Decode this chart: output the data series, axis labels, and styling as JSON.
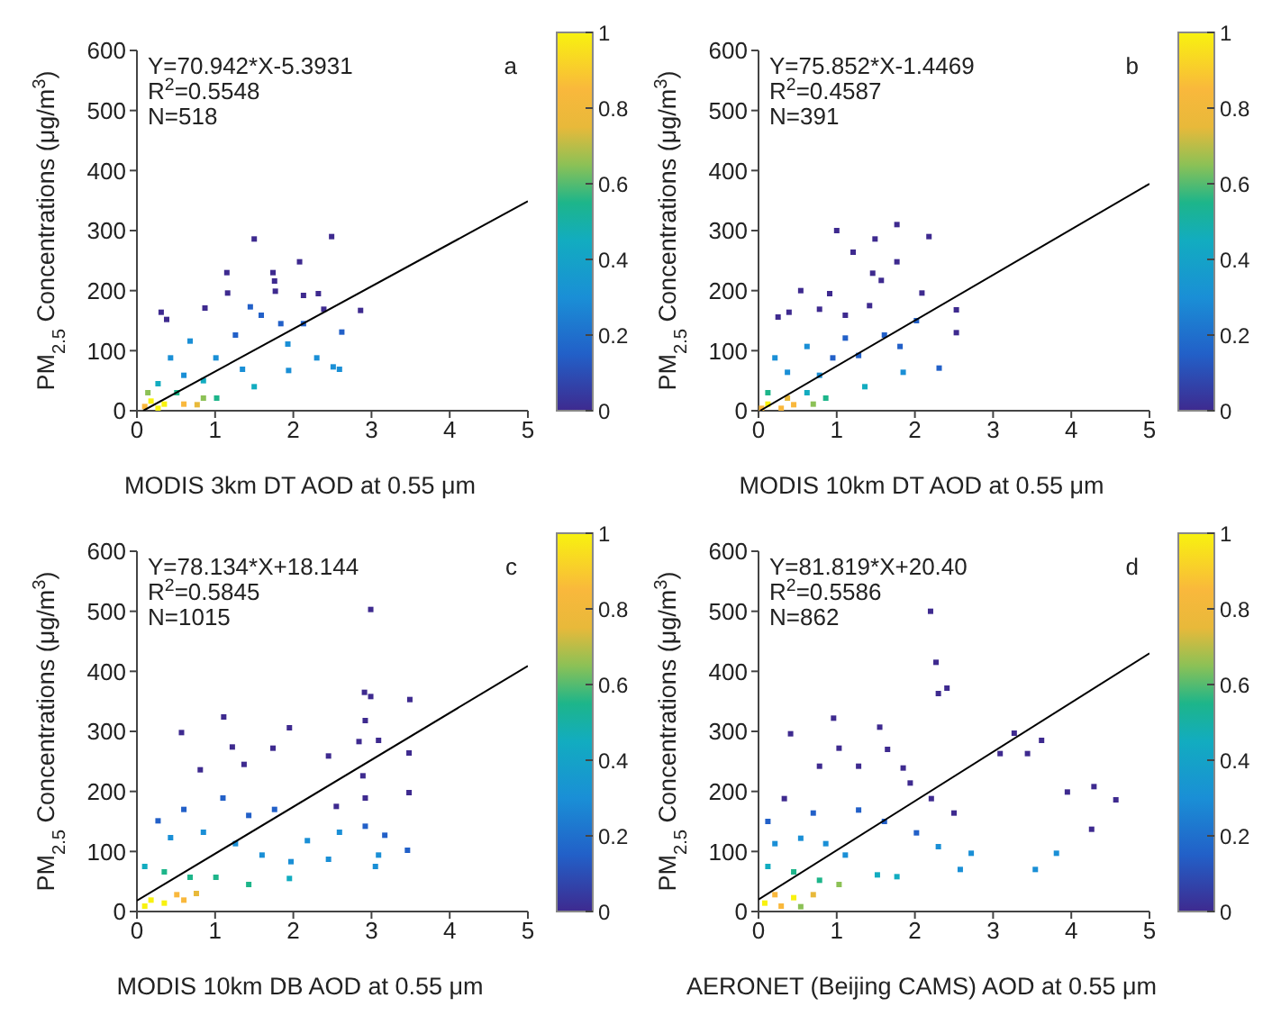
{
  "chart_data": [
    {
      "type": "scatter",
      "xlabel": "MODIS 3km DT AOD at 0.55 μm",
      "ylabel": "PM$_{2.5}$ Concentrations (μg/m$^{3}$)",
      "xlim": [
        0,
        5
      ],
      "xticks": [
        0,
        1,
        2,
        3,
        4,
        5
      ],
      "ylim": [
        0,
        600
      ],
      "yticks": [
        0,
        100,
        200,
        300,
        400,
        500,
        600
      ],
      "clim": [
        0,
        1
      ],
      "cticks": [
        0,
        0.2,
        0.4,
        0.6,
        0.8,
        1
      ],
      "annotations": [
        "Y=70.942*X-5.3931",
        "R$^{2}$=0.5548",
        "N=518",
        "a"
      ],
      "series": [
        {
          "type": "scatter",
          "marker": "square",
          "x": [
            1.5,
            2.49,
            1.15,
            1.74,
            2.08,
            1.76,
            1.16,
            1.77,
            2.13,
            2.32,
            0.87,
            0.31,
            0.38,
            2.86,
            2.39,
            2.62,
            1.45,
            1.26,
            1.59,
            1.84,
            2.13,
            1.93,
            2.3,
            2.51,
            2.59,
            1.94,
            1.5,
            0.68,
            0.43,
            1.01,
            1.35,
            0.6,
            0.85,
            0.27,
            0.14,
            0.51,
            0.85,
            1.02,
            0.18,
            0.35,
            0.6,
            0.1,
            0.27,
            0.77
          ],
          "values": [
            286,
            290,
            230,
            230,
            248,
            216,
            196,
            199,
            192,
            195,
            171,
            164,
            152,
            167,
            169,
            131,
            173,
            126,
            159,
            145,
            145,
            111,
            88,
            73,
            69,
            67,
            40,
            116,
            88,
            88,
            69,
            59,
            50,
            45,
            30,
            30,
            21,
            21,
            16,
            11,
            11,
            7,
            4,
            10
          ],
          "colors": [
            "#3e2a8f",
            "#3e2a8f",
            "#3e2a8f",
            "#3e2a8f",
            "#3e2a8f",
            "#3e2a8f",
            "#3e2a8f",
            "#3e2a8f",
            "#3e2a8f",
            "#3e2a8f",
            "#3e2a8f",
            "#3e2a8f",
            "#3e2a8f",
            "#3e2a8f",
            "#3e2a8f",
            "#2260c8",
            "#2260c8",
            "#2260c8",
            "#2260c8",
            "#2260c8",
            "#2260c8",
            "#1a8fd6",
            "#1a8fd6",
            "#1a8fd6",
            "#1a8fd6",
            "#1a8fd6",
            "#12acc0",
            "#1a8fd6",
            "#1a8fd6",
            "#1a8fd6",
            "#1a8fd6",
            "#1a8fd6",
            "#12acc0",
            "#12acc0",
            "#8cc156",
            "#1db58a",
            "#8cc156",
            "#1db58a",
            "#f8f20f",
            "#f8f20f",
            "#f9b83c",
            "#f9b83c",
            "#f8f20f",
            "#e8b93a"
          ]
        },
        {
          "type": "line",
          "marker": "none",
          "color": "#000000",
          "x": [
            0.08,
            5
          ],
          "values": [
            0,
            349
          ]
        }
      ]
    },
    {
      "type": "scatter",
      "xlabel": "MODIS 10km DT AOD at 0.55 μm",
      "ylabel": "PM$_{2.5}$ Concentrations (μg/m$^{3}$)",
      "xlim": [
        0,
        5
      ],
      "xticks": [
        0,
        1,
        2,
        3,
        4,
        5
      ],
      "ylim": [
        0,
        600
      ],
      "yticks": [
        0,
        100,
        200,
        300,
        400,
        500,
        600
      ],
      "clim": [
        0,
        1
      ],
      "cticks": [
        0,
        0.2,
        0.4,
        0.6,
        0.8,
        1
      ],
      "annotations": [
        "Y=75.852*X-1.4469",
        "R$^{2}$=0.4587",
        "N=391",
        "b"
      ],
      "series": [
        {
          "type": "scatter",
          "marker": "square",
          "x": [
            1.0,
            1.77,
            2.18,
            1.21,
            1.49,
            1.77,
            1.46,
            1.57,
            2.09,
            0.54,
            0.91,
            0.25,
            0.39,
            2.53,
            2.53,
            2.31,
            0.78,
            1.11,
            1.42,
            2.02,
            1.61,
            1.81,
            1.11,
            0.62,
            0.95,
            1.28,
            1.85,
            1.36,
            0.21,
            0.37,
            0.78,
            0.12,
            0.62,
            0.86,
            0.37,
            0.12,
            0.45,
            0.7,
            0.29,
            0.04
          ],
          "values": [
            300,
            310,
            290,
            264,
            286,
            248,
            229,
            217,
            196,
            200,
            195,
            156,
            164,
            168,
            130,
            71,
            169,
            159,
            175,
            150,
            126,
            107,
            121,
            107,
            88,
            92,
            64,
            40,
            88,
            64,
            59,
            30,
            30,
            21,
            21,
            11,
            10,
            11,
            4,
            4
          ],
          "colors": [
            "#3e2a8f",
            "#3e2a8f",
            "#3e2a8f",
            "#3e2a8f",
            "#3e2a8f",
            "#3e2a8f",
            "#3e2a8f",
            "#3e2a8f",
            "#3e2a8f",
            "#3e2a8f",
            "#3e2a8f",
            "#3e2a8f",
            "#3e2a8f",
            "#3e2a8f",
            "#3e2a8f",
            "#2260c8",
            "#3e2a8f",
            "#3e2a8f",
            "#3e2a8f",
            "#2260c8",
            "#2260c8",
            "#2260c8",
            "#2260c8",
            "#1a8fd6",
            "#2260c8",
            "#2260c8",
            "#1a8fd6",
            "#12acc0",
            "#1a8fd6",
            "#1a8fd6",
            "#1a8fd6",
            "#1db58a",
            "#12acc0",
            "#1db58a",
            "#e8b93a",
            "#f8f20f",
            "#f9b83c",
            "#8cc156",
            "#f9b83c",
            "#f9b83c"
          ]
        },
        {
          "type": "line",
          "marker": "none",
          "color": "#000000",
          "x": [
            0.02,
            5
          ],
          "values": [
            0,
            378
          ]
        }
      ]
    },
    {
      "type": "scatter",
      "xlabel": "MODIS 10km DB AOD at 0.55 μm",
      "ylabel": "PM$_{2.5}$ Concentrations (μg/m$^{3}$)",
      "xlim": [
        0,
        5
      ],
      "xticks": [
        0,
        1,
        2,
        3,
        4,
        5
      ],
      "ylim": [
        0,
        600
      ],
      "yticks": [
        0,
        100,
        200,
        300,
        400,
        500,
        600
      ],
      "clim": [
        0,
        1
      ],
      "cticks": [
        0,
        0.2,
        0.4,
        0.6,
        0.8,
        1
      ],
      "annotations": [
        "Y=78.134*X+18.144",
        "R$^{2}$=0.5845",
        "N=1015",
        "c"
      ],
      "series": [
        {
          "type": "scatter",
          "marker": "square",
          "x": [
            2.99,
            2.91,
            2.99,
            3.49,
            2.92,
            1.11,
            0.57,
            1.95,
            3.09,
            2.84,
            3.48,
            2.45,
            1.22,
            1.74,
            0.81,
            1.37,
            2.89,
            3.48,
            2.92,
            2.55,
            1.76,
            1.1,
            0.6,
            1.43,
            2.92,
            3.17,
            2.18,
            2.59,
            3.09,
            3.46,
            3.05,
            2.45,
            1.97,
            1.95,
            0.27,
            0.43,
            0.85,
            1.26,
            1.6,
            1.43,
            1.01,
            0.1,
            0.35,
            0.68,
            0.76,
            0.51,
            0.18,
            0.35,
            0.1,
            0.6
          ],
          "values": [
            503,
            365,
            358,
            353,
            318,
            324,
            298,
            306,
            285,
            283,
            264,
            259,
            274,
            272,
            236,
            245,
            226,
            198,
            189,
            175,
            170,
            189,
            170,
            160,
            142,
            127,
            118,
            132,
            94,
            102,
            75,
            87,
            83,
            55,
            151,
            123,
            132,
            113,
            94,
            45,
            57,
            75,
            66,
            57,
            30,
            28,
            19,
            14,
            9,
            19
          ],
          "colors": [
            "#3e2a8f",
            "#3e2a8f",
            "#3e2a8f",
            "#3e2a8f",
            "#3e2a8f",
            "#3e2a8f",
            "#3e2a8f",
            "#3e2a8f",
            "#3e2a8f",
            "#3e2a8f",
            "#3e2a8f",
            "#3e2a8f",
            "#3e2a8f",
            "#3e2a8f",
            "#3e2a8f",
            "#3e2a8f",
            "#3e2a8f",
            "#3e2a8f",
            "#3e2a8f",
            "#3e2a8f",
            "#2260c8",
            "#2260c8",
            "#2260c8",
            "#2260c8",
            "#2260c8",
            "#2260c8",
            "#1a8fd6",
            "#1a8fd6",
            "#1a8fd6",
            "#2260c8",
            "#1a8fd6",
            "#1a8fd6",
            "#1a8fd6",
            "#12acc0",
            "#2260c8",
            "#1a8fd6",
            "#1a8fd6",
            "#1a8fd6",
            "#1a8fd6",
            "#1db58a",
            "#1db58a",
            "#12acc0",
            "#1db58a",
            "#1db58a",
            "#e8b93a",
            "#f9b83c",
            "#f8f20f",
            "#f8f20f",
            "#f8f20f",
            "#f9b83c"
          ]
        },
        {
          "type": "line",
          "marker": "none",
          "color": "#000000",
          "x": [
            0,
            5
          ],
          "values": [
            18,
            409
          ]
        }
      ]
    },
    {
      "type": "scatter",
      "xlabel": "AERONET (Beijing CAMS) AOD at 0.55 μm",
      "ylabel": "PM$_{2.5}$ Concentrations (μg/m$^{3}$)",
      "xlim": [
        0,
        5
      ],
      "xticks": [
        0,
        1,
        2,
        3,
        4,
        5
      ],
      "ylim": [
        0,
        600
      ],
      "yticks": [
        0,
        100,
        200,
        300,
        400,
        500,
        600
      ],
      "clim": [
        0,
        1
      ],
      "cticks": [
        0,
        0.2,
        0.4,
        0.6,
        0.8,
        1
      ],
      "annotations": [
        "Y=81.819*X+20.40",
        "R$^{2}$=0.5586",
        "N=862",
        "d"
      ],
      "series": [
        {
          "type": "scatter",
          "marker": "square",
          "x": [
            2.2,
            2.27,
            2.41,
            2.3,
            0.96,
            0.41,
            1.55,
            3.27,
            3.62,
            3.09,
            3.44,
            1.03,
            1.65,
            4.29,
            3.95,
            4.57,
            4.26,
            0.78,
            1.28,
            1.85,
            1.94,
            2.21,
            2.5,
            0.33,
            0.7,
            1.28,
            1.61,
            2.02,
            2.3,
            2.72,
            2.58,
            3.54,
            3.81,
            1.52,
            1.77,
            0.12,
            0.21,
            0.54,
            0.86,
            1.11,
            0.12,
            0.45,
            0.78,
            1.03,
            0.21,
            0.45,
            0.7,
            0.08,
            0.29,
            0.54
          ],
          "values": [
            500,
            415,
            372,
            363,
            322,
            296,
            307,
            297,
            285,
            263,
            263,
            272,
            270,
            208,
            199,
            186,
            137,
            242,
            242,
            239,
            214,
            188,
            164,
            188,
            164,
            169,
            150,
            131,
            108,
            97,
            70,
            70,
            97,
            61,
            58,
            150,
            113,
            122,
            113,
            94,
            75,
            66,
            52,
            45,
            28,
            23,
            28,
            14,
            9,
            8
          ],
          "colors": [
            "#3e2a8f",
            "#3e2a8f",
            "#3e2a8f",
            "#3e2a8f",
            "#3e2a8f",
            "#3e2a8f",
            "#3e2a8f",
            "#3e2a8f",
            "#3e2a8f",
            "#3e2a8f",
            "#3e2a8f",
            "#3e2a8f",
            "#3e2a8f",
            "#3e2a8f",
            "#3e2a8f",
            "#3e2a8f",
            "#3e2a8f",
            "#3e2a8f",
            "#3e2a8f",
            "#3e2a8f",
            "#3e2a8f",
            "#3e2a8f",
            "#3e2a8f",
            "#3e2a8f",
            "#2260c8",
            "#2260c8",
            "#2260c8",
            "#2260c8",
            "#1a8fd6",
            "#1a8fd6",
            "#1a8fd6",
            "#1a8fd6",
            "#1a8fd6",
            "#12acc0",
            "#12acc0",
            "#2260c8",
            "#1a8fd6",
            "#1a8fd6",
            "#1a8fd6",
            "#1a8fd6",
            "#12acc0",
            "#1db58a",
            "#1db58a",
            "#8cc156",
            "#f9b83c",
            "#f8f20f",
            "#e8b93a",
            "#f8f20f",
            "#f9b83c",
            "#8cc156"
          ]
        },
        {
          "type": "line",
          "marker": "none",
          "color": "#000000",
          "x": [
            0,
            5
          ],
          "values": [
            20,
            430
          ]
        }
      ]
    }
  ]
}
